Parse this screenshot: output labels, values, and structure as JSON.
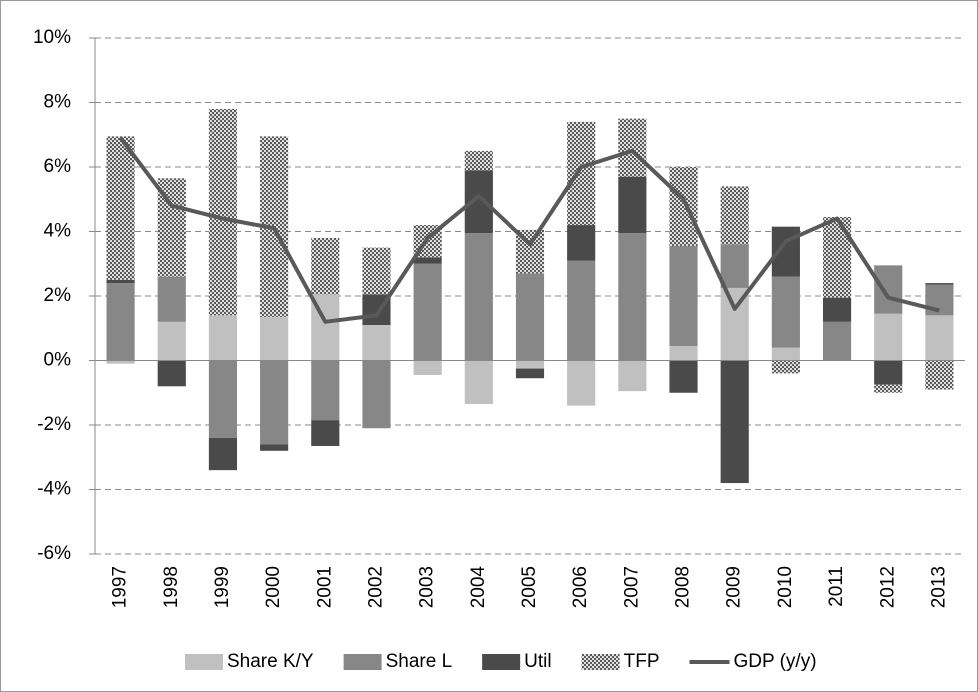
{
  "chart_data": {
    "type": "stacked-bar-line",
    "categories": [
      "1997",
      "1998",
      "1999",
      "2000",
      "2001",
      "2002",
      "2003",
      "2004",
      "2005",
      "2006",
      "2007",
      "2008",
      "2009",
      "2010",
      "2011",
      "2012",
      "2013"
    ],
    "series": [
      {
        "name": "Share K/Y",
        "type": "bar",
        "color": "#c0c0c0",
        "values": [
          -0.1,
          1.2,
          1.4,
          1.35,
          2.05,
          1.1,
          -0.45,
          -1.35,
          -0.25,
          -1.4,
          -0.95,
          0.45,
          2.25,
          0.4,
          0,
          1.45,
          1.4
        ]
      },
      {
        "name": "Share L",
        "type": "bar",
        "color": "#878787",
        "values": [
          2.4,
          1.4,
          -2.4,
          -2.6,
          -1.85,
          -2.1,
          3.0,
          3.95,
          2.7,
          3.1,
          3.95,
          3.1,
          1.35,
          2.2,
          1.2,
          1.5,
          0.95
        ]
      },
      {
        "name": "Util",
        "type": "bar",
        "color": "#4a4a4a",
        "values": [
          0.1,
          -0.8,
          -1.0,
          -0.2,
          -0.8,
          0.95,
          0.2,
          1.95,
          -0.3,
          1.1,
          1.75,
          -1.0,
          -3.8,
          1.55,
          0.75,
          -0.75,
          0.05
        ]
      },
      {
        "name": "TFP",
        "type": "bar",
        "color": "#5a5a5a",
        "pattern": "checker",
        "values": [
          4.45,
          3.05,
          6.4,
          5.6,
          1.75,
          1.45,
          1.0,
          0.6,
          1.35,
          3.2,
          1.8,
          2.45,
          1.8,
          -0.4,
          2.5,
          -0.25,
          -0.9
        ]
      },
      {
        "name": "GDP (y/y)",
        "type": "line",
        "color": "#595959",
        "values": [
          6.9,
          4.8,
          4.4,
          4.1,
          1.2,
          1.4,
          3.8,
          5.1,
          3.6,
          6.0,
          6.5,
          5.0,
          1.6,
          3.7,
          4.4,
          1.95,
          1.55
        ]
      }
    ],
    "ylim": [
      -6,
      10
    ],
    "yticks": [
      {
        "value": -6,
        "label": "-6%"
      },
      {
        "value": -4,
        "label": "-4%"
      },
      {
        "value": -2,
        "label": "-2%"
      },
      {
        "value": 0,
        "label": "0%"
      },
      {
        "value": 2,
        "label": "2%"
      },
      {
        "value": 4,
        "label": "4%"
      },
      {
        "value": 6,
        "label": "6%"
      },
      {
        "value": 8,
        "label": "8%"
      },
      {
        "value": 10,
        "label": "10%"
      }
    ],
    "grid": true,
    "legend": "bottom"
  }
}
